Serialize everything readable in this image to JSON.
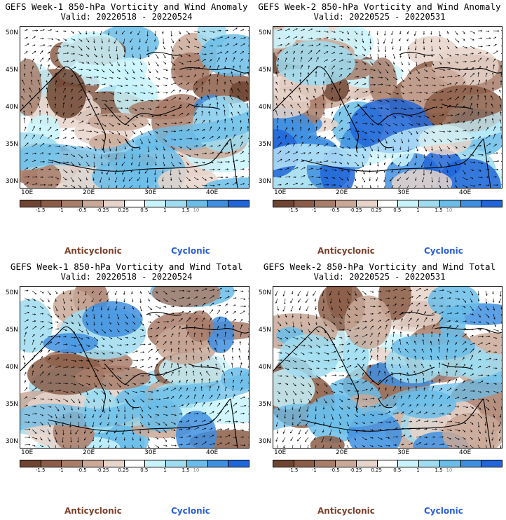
{
  "colorbar": {
    "labels": [
      "-1.5",
      "-1",
      "-0.5",
      "-0.25",
      "0.25",
      "0.5",
      "1",
      "1.5"
    ],
    "colors": [
      "#6e4532",
      "#8b5d48",
      "#a87d6a",
      "#c9a898",
      "#e6d3ca",
      "#ffffff",
      "#c9f3fb",
      "#9fdcf0",
      "#6bbde9",
      "#3f8fe0",
      "#2166d8"
    ],
    "watermark": "10"
  },
  "axes": {
    "lat_labels": [
      "50N",
      "45N",
      "40N",
      "35N",
      "30N"
    ],
    "lon_labels": [
      "10E",
      "20E",
      "30E",
      "40E"
    ]
  },
  "legend": {
    "anticyclonic": "Anticyclonic",
    "cyclonic": "Cyclonic",
    "anticyclonic_color": "#7a3f2a",
    "cyclonic_color": "#2a5fd6"
  },
  "panels": [
    {
      "title": "GEFS Week-1 850-hPa Vorticity and Wind Anomaly",
      "valid": "Valid: 20220518 - 20220524",
      "seed": 11,
      "bias": 0.2
    },
    {
      "title": "GEFS Week-2 850-hPa Vorticity and Wind Anomaly",
      "valid": "Valid: 20220525 - 20220531",
      "seed": 23,
      "bias": 0.4
    },
    {
      "title": "GEFS Week-1 850-hPa Vorticity and Wind Total",
      "valid": "Valid: 20220518 - 20220524",
      "seed": 37,
      "bias": -0.1
    },
    {
      "title": "GEFS Week-2 850-hPa Vorticity and Wind Total",
      "valid": "Valid: 20220525 - 20220531",
      "seed": 51,
      "bias": 0.0
    }
  ]
}
